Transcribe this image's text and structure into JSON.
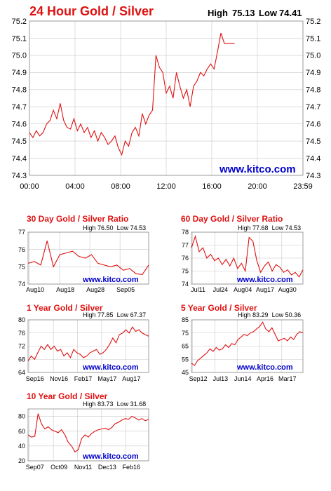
{
  "main": {
    "title": "24 Hour Gold / Silver",
    "high_label": "High",
    "high_value": "75.13",
    "low_label": "Low",
    "low_value": "74.41",
    "watermark": "www.kitco.com"
  },
  "colors": {
    "title": "#e01010",
    "line": "#e01010",
    "grid": "#c8c8c8",
    "watermark": "#0000cc"
  },
  "chart_data": [
    {
      "id": "24h",
      "type": "line",
      "title": "24 Hour Gold / Silver",
      "x_ticks": [
        "00:00",
        "04:00",
        "08:00",
        "12:00",
        "16:00",
        "20:00",
        "23:59"
      ],
      "y_ticks": [
        "74.3",
        "74.4",
        "74.5",
        "74.6",
        "74.7",
        "74.8",
        "74.9",
        "75.0",
        "75.1",
        "75.2"
      ],
      "xlim": [
        0,
        24
      ],
      "ylim": [
        74.3,
        75.2
      ],
      "grid": true,
      "series": [
        {
          "x": [
            0,
            0.3,
            0.6,
            0.9,
            1.2,
            1.5,
            1.8,
            2.1,
            2.4,
            2.7,
            3.0,
            3.3,
            3.6,
            3.9,
            4.2,
            4.5,
            4.8,
            5.1,
            5.4,
            5.7,
            6.0,
            6.3,
            6.6,
            6.9,
            7.2,
            7.5,
            7.8,
            8.1,
            8.4,
            8.7,
            9.0,
            9.3,
            9.6,
            9.9,
            10.2,
            10.5,
            10.8,
            11.1,
            11.4,
            11.7,
            12.0,
            12.3,
            12.6,
            12.9,
            13.2,
            13.5,
            13.8,
            14.1,
            14.4,
            14.7,
            15.0,
            15.3,
            15.6,
            15.9,
            16.2,
            16.5,
            16.8,
            17.1,
            17.4,
            17.7,
            18.0
          ],
          "y": [
            74.55,
            74.52,
            74.56,
            74.53,
            74.55,
            74.6,
            74.62,
            74.68,
            74.63,
            74.72,
            74.62,
            74.58,
            74.57,
            74.63,
            74.56,
            74.6,
            74.55,
            74.58,
            74.52,
            74.56,
            74.5,
            74.55,
            74.52,
            74.48,
            74.5,
            74.53,
            74.46,
            74.42,
            74.5,
            74.47,
            74.55,
            74.58,
            74.53,
            74.66,
            74.6,
            74.65,
            74.68,
            75.0,
            74.93,
            74.9,
            74.78,
            74.82,
            74.75,
            74.9,
            74.82,
            74.75,
            74.8,
            74.7,
            74.82,
            74.85,
            74.9,
            74.88,
            74.92,
            74.95,
            74.92,
            75.02,
            75.13,
            75.07,
            75.07,
            75.07,
            75.07
          ]
        }
      ],
      "watermark": "www.kitco.com"
    },
    {
      "id": "30d",
      "type": "line",
      "title": "30 Day Gold / Silver Ratio",
      "high_label": "High",
      "high_value": "76.50",
      "low_label": "Low",
      "low_value": "74.53",
      "x_ticks": [
        "Aug10",
        "Aug18",
        "Aug28",
        "Sep05"
      ],
      "y_ticks": [
        "74",
        "75",
        "76",
        "77"
      ],
      "ylim": [
        74,
        77
      ],
      "grid": true,
      "series": [
        {
          "y": [
            75.2,
            75.3,
            75.1,
            76.5,
            75.0,
            75.7,
            75.8,
            75.9,
            75.6,
            75.5,
            75.7,
            75.2,
            75.1,
            75.0,
            75.1,
            74.8,
            74.9,
            74.6,
            74.55,
            75.1
          ]
        }
      ],
      "watermark": "www.kitco.com"
    },
    {
      "id": "60d",
      "type": "line",
      "title": "60 Day Gold / Silver Ratio",
      "high_label": "High",
      "high_value": "77.68",
      "low_label": "Low",
      "low_value": "74.53",
      "x_ticks": [
        "Jul11",
        "Jul24",
        "Aug04",
        "Aug17",
        "Aug30"
      ],
      "y_ticks": [
        "74",
        "75",
        "76",
        "77",
        "78"
      ],
      "ylim": [
        74,
        78
      ],
      "grid": true,
      "series": [
        {
          "y": [
            76.8,
            77.68,
            76.5,
            76.8,
            76.0,
            76.3,
            75.8,
            76.0,
            75.5,
            75.9,
            75.4,
            76.0,
            75.2,
            75.6,
            75.0,
            77.6,
            77.3,
            75.8,
            74.9,
            75.4,
            75.7,
            75.0,
            75.5,
            75.3,
            74.9,
            75.1,
            74.7,
            74.9,
            74.55,
            75.1
          ]
        }
      ],
      "watermark": "www.kitco.com"
    },
    {
      "id": "1y",
      "type": "line",
      "title": "1 Year Gold / Silver",
      "high_label": "High",
      "high_value": "77.85",
      "low_label": "Low",
      "low_value": "67.37",
      "x_ticks": [
        "Sep16",
        "Nov16",
        "Feb17",
        "May17",
        "Aug17"
      ],
      "y_ticks": [
        "64",
        "68",
        "72",
        "76",
        "80"
      ],
      "ylim": [
        64,
        80
      ],
      "grid": true,
      "series": [
        {
          "y": [
            67.5,
            69,
            68,
            70,
            72,
            71,
            72.5,
            71,
            72,
            70.5,
            71,
            69,
            70,
            68.5,
            71,
            70,
            69.5,
            68.5,
            69,
            70,
            70.5,
            71,
            69.5,
            70,
            71,
            72.5,
            74.5,
            73,
            75.5,
            76,
            77,
            76,
            77.85,
            76.5,
            77,
            76,
            75.5,
            75
          ]
        }
      ],
      "watermark": "www.kitco.com"
    },
    {
      "id": "5y",
      "type": "line",
      "title": "5 Year Gold / Silver",
      "high_label": "High",
      "high_value": "83.29",
      "low_label": "Low",
      "low_value": "50.36",
      "x_ticks": [
        "Sep12",
        "Jul13",
        "Jun14",
        "Apr16",
        "Mar17"
      ],
      "y_ticks": [
        "45",
        "55",
        "65",
        "75",
        "85"
      ],
      "ylim": [
        45,
        85
      ],
      "grid": true,
      "series": [
        {
          "y": [
            52,
            50.4,
            54,
            56,
            58,
            60,
            63,
            61,
            64,
            62,
            63,
            66,
            64,
            67,
            66,
            70,
            72,
            74,
            73,
            75,
            76,
            78,
            80,
            83.29,
            78,
            76,
            79,
            74,
            69,
            70,
            71,
            69,
            72,
            70,
            74,
            76,
            75
          ]
        }
      ],
      "watermark": "www.kitco.com"
    },
    {
      "id": "10y",
      "type": "line",
      "title": "10 Year Gold / Silver",
      "high_label": "High",
      "high_value": "83.73",
      "low_label": "Low",
      "low_value": "31.68",
      "x_ticks": [
        "Sep07",
        "Oct09",
        "Nov11",
        "Dec13",
        "Feb16"
      ],
      "y_ticks": [
        "20",
        "40",
        "60",
        "80"
      ],
      "ylim": [
        20,
        90
      ],
      "grid": true,
      "series": [
        {
          "y": [
            55,
            52,
            53,
            83.7,
            70,
            63,
            66,
            62,
            60,
            58,
            62,
            55,
            45,
            40,
            32,
            35,
            50,
            55,
            52,
            57,
            60,
            62,
            63,
            64,
            62,
            65,
            70,
            72,
            75,
            77,
            76,
            80,
            78,
            75,
            77,
            74,
            76
          ]
        }
      ],
      "watermark": "www.kitco.com"
    }
  ]
}
